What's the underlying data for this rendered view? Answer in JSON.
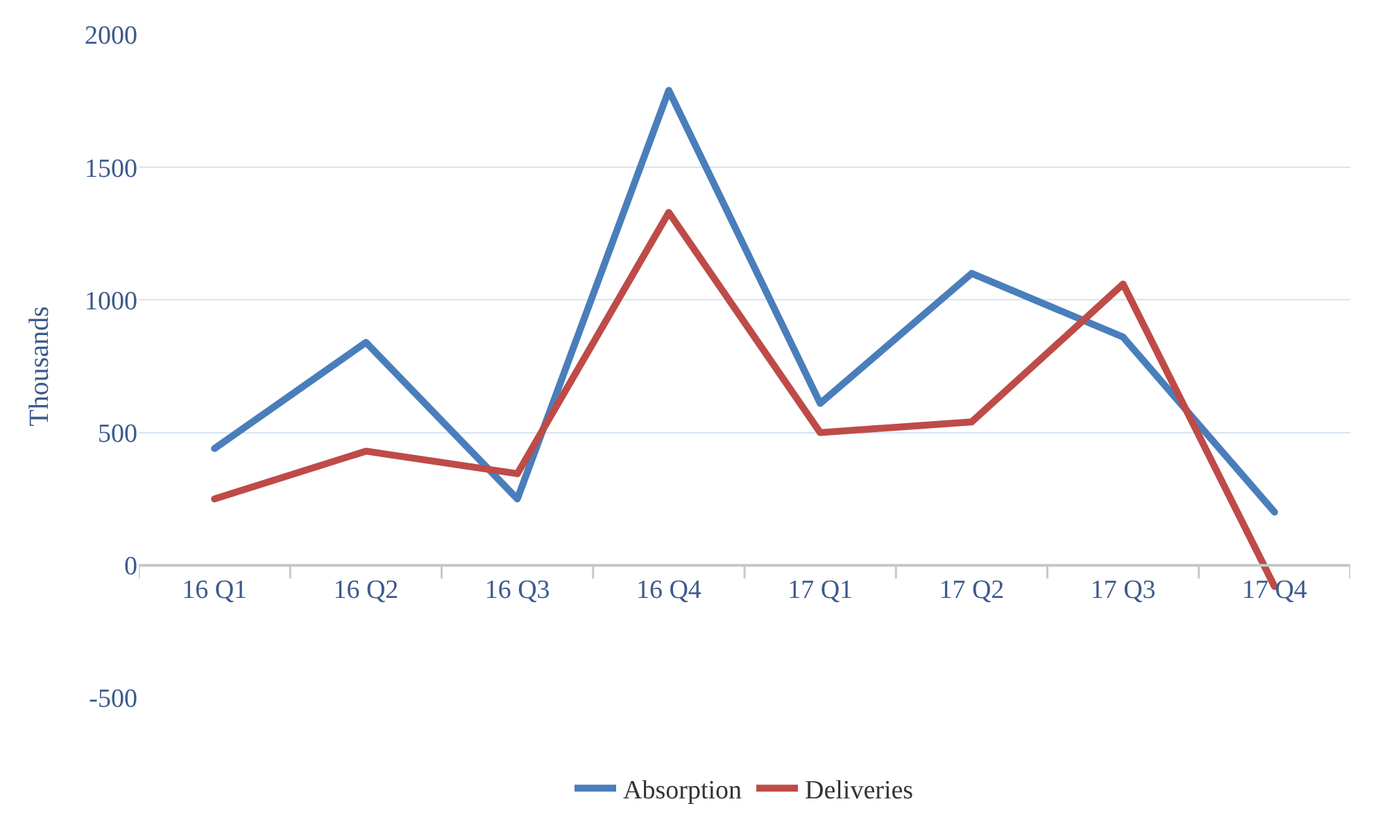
{
  "chart_data": {
    "type": "line",
    "ylabel": "Thousands",
    "categories": [
      "16 Q1",
      "16 Q2",
      "16 Q3",
      "16 Q4",
      "17 Q1",
      "17 Q2",
      "17 Q3",
      "17 Q4"
    ],
    "series": [
      {
        "name": "Absorption",
        "color": "#4a7ebb",
        "values": [
          440,
          840,
          250,
          1790,
          610,
          1100,
          860,
          200
        ]
      },
      {
        "name": "Deliveries",
        "color": "#be4b48",
        "values": [
          250,
          430,
          345,
          1330,
          500,
          540,
          1060,
          -80
        ]
      }
    ],
    "ylim": [
      -500,
      2000
    ],
    "yticks": [
      -500,
      0,
      500,
      1000,
      1500,
      2000
    ],
    "grid": "y",
    "legend": "bottom",
    "marker": "none",
    "line_style": "solid"
  }
}
